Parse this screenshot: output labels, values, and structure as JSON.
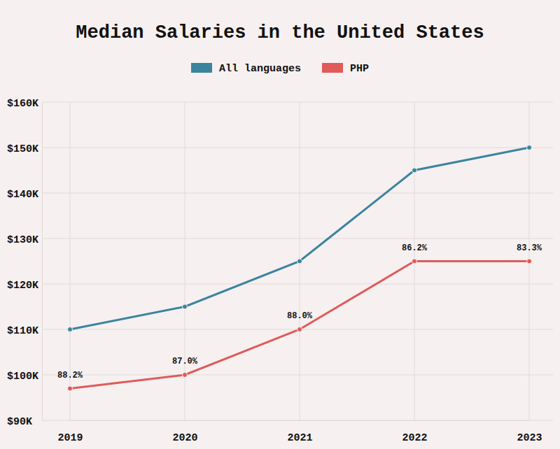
{
  "chart_data": {
    "type": "line",
    "title": "Median Salaries in the United States",
    "categories": [
      "2019",
      "2020",
      "2021",
      "2022",
      "2023"
    ],
    "series": [
      {
        "name": "All languages",
        "color": "#3c849e",
        "marker": "circle",
        "line_style": "solid",
        "values": [
          110000,
          115000,
          125000,
          145000,
          150000
        ]
      },
      {
        "name": "PHP",
        "color": "#e05a5a",
        "marker": "circle",
        "line_style": "solid",
        "values": [
          97000,
          100000,
          110000,
          125000,
          125000
        ]
      }
    ],
    "annotations": [
      {
        "x": "2019",
        "y": 97000,
        "text": "88.2%"
      },
      {
        "x": "2020",
        "y": 100000,
        "text": "87.0%"
      },
      {
        "x": "2021",
        "y": 110000,
        "text": "88.0%"
      },
      {
        "x": "2022",
        "y": 125000,
        "text": "86.2%"
      },
      {
        "x": "2023",
        "y": 125000,
        "text": "83.3%"
      }
    ],
    "ylim": [
      90000,
      160000
    ],
    "yticks": [
      {
        "value": 90000,
        "label": "$90K"
      },
      {
        "value": 100000,
        "label": "$100K"
      },
      {
        "value": 110000,
        "label": "$110K"
      },
      {
        "value": 120000,
        "label": "$120K"
      },
      {
        "value": 130000,
        "label": "$130K"
      },
      {
        "value": 140000,
        "label": "$140K"
      },
      {
        "value": 150000,
        "label": "$150K"
      },
      {
        "value": 160000,
        "label": "$160K"
      }
    ],
    "grid": true,
    "legend": "top"
  }
}
